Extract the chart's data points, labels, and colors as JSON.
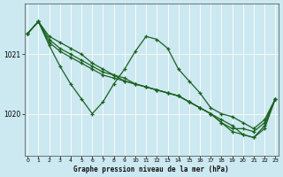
{
  "title": "Graphe pression niveau de la mer (hPa)",
  "background_color": "#cce8f0",
  "line_color": "#1a6120",
  "grid_color": "#ffffff",
  "ylim": [
    1019.3,
    1021.85
  ],
  "xlim": [
    -0.3,
    23.3
  ],
  "yticks": [
    1020,
    1021
  ],
  "xticks": [
    0,
    1,
    2,
    3,
    4,
    5,
    6,
    7,
    8,
    9,
    10,
    11,
    12,
    13,
    14,
    15,
    16,
    17,
    18,
    19,
    20,
    21,
    22,
    23
  ],
  "series": [
    {
      "x": [
        0,
        1,
        2,
        3,
        4,
        5,
        6,
        7,
        8,
        9,
        10,
        11,
        12,
        13,
        14,
        15,
        16,
        17,
        18,
        19,
        20,
        21,
        22,
        23
      ],
      "y": [
        1021.35,
        1021.55,
        1021.15,
        1020.8,
        1020.5,
        1020.25,
        1020.0,
        1020.2,
        1020.5,
        1020.75,
        1021.05,
        1021.3,
        1021.25,
        1021.1,
        1020.75,
        1020.55,
        1020.35,
        1020.1,
        1020.0,
        1019.95,
        1019.85,
        1019.75,
        1019.9,
        1020.25
      ]
    },
    {
      "x": [
        0,
        1,
        2,
        3,
        4,
        5,
        6,
        7,
        8,
        9,
        10,
        11,
        12,
        13,
        14,
        15,
        16,
        17,
        18,
        19,
        20,
        21,
        22,
        23
      ],
      "y": [
        1021.35,
        1021.55,
        1021.2,
        1021.05,
        1020.95,
        1020.85,
        1020.75,
        1020.65,
        1020.6,
        1020.55,
        1020.5,
        1020.45,
        1020.4,
        1020.35,
        1020.3,
        1020.2,
        1020.1,
        1020.0,
        1019.85,
        1019.75,
        1019.75,
        1019.7,
        1019.85,
        1020.25
      ]
    },
    {
      "x": [
        0,
        1,
        2,
        3,
        4,
        5,
        6,
        7,
        8,
        9,
        10,
        11,
        12,
        13,
        14,
        15,
        16,
        17,
        18,
        19,
        20,
        21,
        22,
        23
      ],
      "y": [
        1021.35,
        1021.55,
        1021.25,
        1021.1,
        1021.0,
        1020.9,
        1020.8,
        1020.7,
        1020.65,
        1020.55,
        1020.5,
        1020.45,
        1020.4,
        1020.35,
        1020.3,
        1020.2,
        1020.1,
        1020.0,
        1019.85,
        1019.7,
        1019.65,
        1019.6,
        1019.8,
        1020.25
      ]
    },
    {
      "x": [
        0,
        1,
        2,
        3,
        4,
        5,
        6,
        7,
        8,
        9,
        10,
        11,
        12,
        13,
        14,
        15,
        16,
        17,
        18,
        19,
        20,
        21,
        22,
        23
      ],
      "y": [
        1021.35,
        1021.55,
        1021.3,
        1021.2,
        1021.1,
        1021.0,
        1020.85,
        1020.75,
        1020.65,
        1020.6,
        1020.5,
        1020.45,
        1020.4,
        1020.35,
        1020.3,
        1020.2,
        1020.1,
        1020.0,
        1019.9,
        1019.8,
        1019.65,
        1019.6,
        1019.75,
        1020.25
      ]
    }
  ]
}
